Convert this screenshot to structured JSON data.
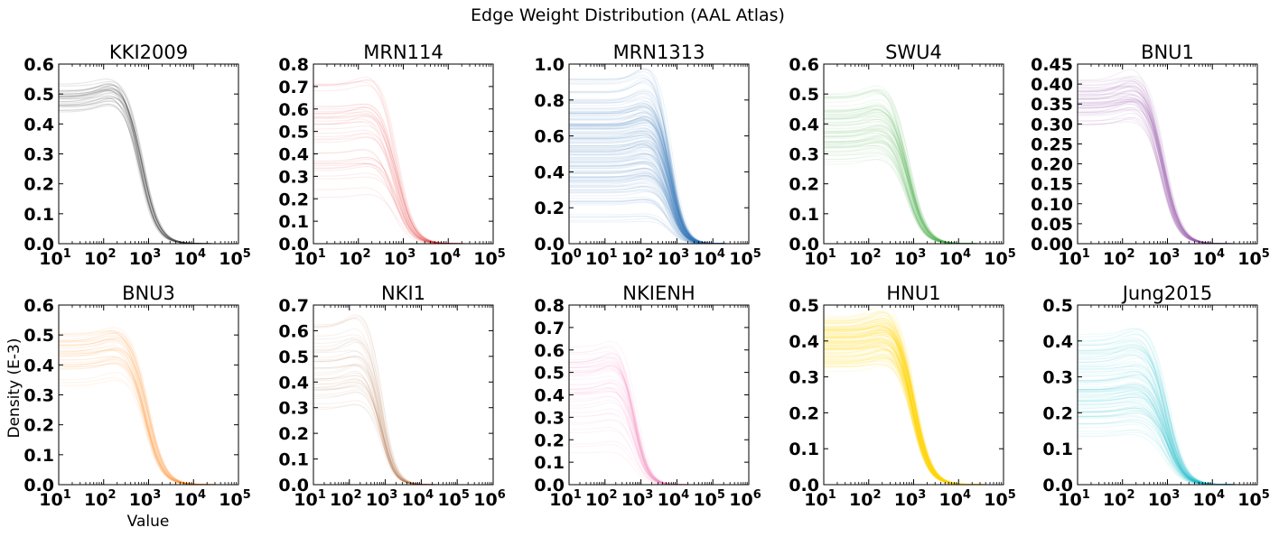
{
  "figure": {
    "title": "Edge Weight Distribution (AAL Atlas)",
    "ylabel": "Density (E-3)",
    "xlabel": "Value"
  },
  "chart_data": [
    {
      "type": "line",
      "title": "KKI2009",
      "color": "#333333",
      "xscale": "log",
      "xlim": [
        10,
        100000
      ],
      "ylim": [
        0,
        0.6
      ],
      "yticks": [
        0.0,
        0.1,
        0.2,
        0.3,
        0.4,
        0.5,
        0.6
      ],
      "xtick_exponents": [
        1,
        2,
        3,
        4,
        5
      ],
      "curves": {
        "count": 30,
        "plateau_range": [
          0.4,
          0.57
        ],
        "peak": 250,
        "drop_mid": 700,
        "tail_end": 20000
      },
      "opacity": 0.12
    },
    {
      "type": "line",
      "title": "MRN114",
      "color": "#e41a1c",
      "xscale": "log",
      "xlim": [
        10,
        100000
      ],
      "ylim": [
        0,
        0.8
      ],
      "yticks": [
        0.0,
        0.1,
        0.2,
        0.3,
        0.4,
        0.5,
        0.6,
        0.7,
        0.8
      ],
      "xtick_exponents": [
        1,
        2,
        3,
        4,
        5
      ],
      "curves": {
        "count": 40,
        "plateau_range": [
          0.18,
          0.75
        ],
        "peak": 300,
        "drop_mid": 700,
        "tail_end": 30000
      },
      "opacity": 0.08
    },
    {
      "type": "line",
      "title": "MRN1313",
      "color": "#377eb8",
      "xscale": "log",
      "xlim": [
        1,
        100000
      ],
      "ylim": [
        0,
        1.0
      ],
      "yticks": [
        0.0,
        0.2,
        0.4,
        0.6,
        0.8,
        1.0
      ],
      "xtick_exponents": [
        0,
        1,
        2,
        3,
        4,
        5
      ],
      "curves": {
        "count": 160,
        "plateau_range": [
          0.1,
          0.95
        ],
        "peak": 200,
        "drop_mid": 700,
        "tail_end": 40000
      },
      "opacity": 0.09
    },
    {
      "type": "line",
      "title": "SWU4",
      "color": "#4daf4a",
      "xscale": "log",
      "xlim": [
        10,
        100000
      ],
      "ylim": [
        0,
        0.6
      ],
      "yticks": [
        0.0,
        0.1,
        0.2,
        0.3,
        0.4,
        0.5,
        0.6
      ],
      "xtick_exponents": [
        1,
        2,
        3,
        4,
        5
      ],
      "curves": {
        "count": 80,
        "plateau_range": [
          0.23,
          0.53
        ],
        "peak": 300,
        "drop_mid": 800,
        "tail_end": 25000
      },
      "opacity": 0.08
    },
    {
      "type": "line",
      "title": "BNU1",
      "color": "#984ea3",
      "xscale": "log",
      "xlim": [
        10,
        100000
      ],
      "ylim": [
        0,
        0.45
      ],
      "yticks": [
        0.0,
        0.05,
        0.1,
        0.15,
        0.2,
        0.25,
        0.3,
        0.35,
        0.4,
        0.45
      ],
      "xtick_exponents": [
        1,
        2,
        3,
        4,
        5
      ],
      "curves": {
        "count": 50,
        "plateau_range": [
          0.29,
          0.42
        ],
        "peak": 300,
        "drop_mid": 800,
        "tail_end": 20000
      },
      "opacity": 0.1
    },
    {
      "type": "line",
      "title": "BNU3",
      "color": "#ff7f00",
      "xscale": "log",
      "xlim": [
        10,
        100000
      ],
      "ylim": [
        0,
        0.6
      ],
      "yticks": [
        0.0,
        0.1,
        0.2,
        0.3,
        0.4,
        0.5,
        0.6
      ],
      "xtick_exponents": [
        1,
        2,
        3,
        4,
        5
      ],
      "curves": {
        "count": 40,
        "plateau_range": [
          0.3,
          0.55
        ],
        "peak": 300,
        "drop_mid": 900,
        "tail_end": 30000
      },
      "opacity": 0.08
    },
    {
      "type": "line",
      "title": "NKI1",
      "color": "#a65628",
      "xscale": "log",
      "xlim": [
        10,
        1000000
      ],
      "ylim": [
        0,
        0.7
      ],
      "yticks": [
        0.0,
        0.1,
        0.2,
        0.3,
        0.4,
        0.5,
        0.6,
        0.7
      ],
      "xtick_exponents": [
        1,
        2,
        3,
        4,
        5,
        6
      ],
      "curves": {
        "count": 40,
        "plateau_range": [
          0.25,
          0.65
        ],
        "peak": 250,
        "drop_mid": 800,
        "tail_end": 50000
      },
      "opacity": 0.08
    },
    {
      "type": "line",
      "title": "NKIENH",
      "color": "#f781bf",
      "xscale": "log",
      "xlim": [
        10,
        1000000
      ],
      "ylim": [
        0,
        0.8
      ],
      "yticks": [
        0.0,
        0.1,
        0.2,
        0.3,
        0.4,
        0.5,
        0.6,
        0.7,
        0.8
      ],
      "xtick_exponents": [
        1,
        2,
        3,
        4,
        5,
        6
      ],
      "curves": {
        "count": 50,
        "plateau_range": [
          0.12,
          0.68
        ],
        "peak": 250,
        "drop_mid": 700,
        "tail_end": 40000
      },
      "opacity": 0.09
    },
    {
      "type": "line",
      "title": "HNU1",
      "color": "#ffd700",
      "xscale": "log",
      "xlim": [
        10,
        100000
      ],
      "ylim": [
        0,
        0.5
      ],
      "yticks": [
        0.0,
        0.1,
        0.2,
        0.3,
        0.4,
        0.5
      ],
      "xtick_exponents": [
        1,
        2,
        3,
        4,
        5
      ],
      "curves": {
        "count": 120,
        "plateau_range": [
          0.31,
          0.48
        ],
        "peak": 400,
        "drop_mid": 1000,
        "tail_end": 30000
      },
      "opacity": 0.1
    },
    {
      "type": "line",
      "title": "Jung2015",
      "color": "#17becf",
      "xscale": "log",
      "xlim": [
        10,
        100000
      ],
      "ylim": [
        0,
        0.5
      ],
      "yticks": [
        0.0,
        0.1,
        0.2,
        0.3,
        0.4,
        0.5
      ],
      "xtick_exponents": [
        1,
        2,
        3,
        4,
        5
      ],
      "curves": {
        "count": 100,
        "plateau_range": [
          0.1,
          0.45
        ],
        "peak": 300,
        "drop_mid": 1000,
        "tail_end": 50000
      },
      "opacity": 0.08
    }
  ]
}
